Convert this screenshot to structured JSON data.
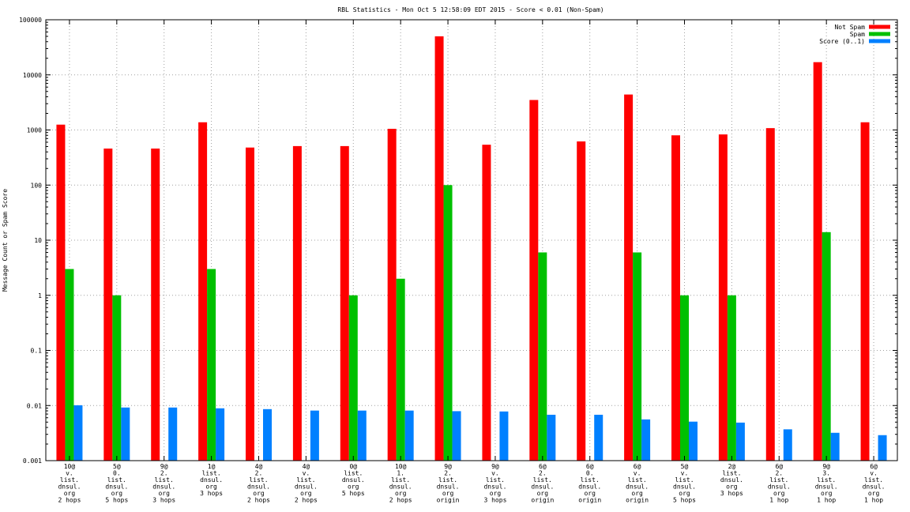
{
  "chart_data": {
    "type": "bar",
    "title": "RBL Statistics - Mon Oct  5 12:58:09 EDT 2015 - Score < 0.01 (Non-Spam)",
    "ylabel": "Message Count or Spam Score",
    "xlabel": "",
    "yscale": "log",
    "ylim": [
      0.001,
      100000
    ],
    "yticks": [
      "0.001",
      "0.01",
      "0.1",
      "1",
      "10",
      "100",
      "1000",
      "10000",
      "100000"
    ],
    "grid": true,
    "legend_position": "top-right",
    "categories": [
      [
        "10@",
        "v.",
        "list.",
        "dnsul.",
        "org",
        "2 hops"
      ],
      [
        "5@",
        "0.",
        "list.",
        "dnsul.",
        "org",
        "5 hops"
      ],
      [
        "9@",
        "2.",
        "list.",
        "dnsul.",
        "org",
        "3 hops"
      ],
      [
        "1@",
        "list.",
        "dnsul.",
        "org",
        "3 hops"
      ],
      [
        "4@",
        "2.",
        "list.",
        "dnsul.",
        "org",
        "2 hops"
      ],
      [
        "4@",
        "v.",
        "list.",
        "dnsul.",
        "org",
        "2 hops"
      ],
      [
        "0@",
        "list.",
        "dnsul.",
        "org",
        "5 hops"
      ],
      [
        "10@",
        "1.",
        "list.",
        "dnsul.",
        "org",
        "2 hops"
      ],
      [
        "9@",
        "2.",
        "list.",
        "dnsul.",
        "org",
        "origin"
      ],
      [
        "9@",
        "v.",
        "list.",
        "dnsul.",
        "org",
        "3 hops"
      ],
      [
        "6@",
        "2.",
        "list.",
        "dnsul.",
        "org",
        "origin"
      ],
      [
        "6@",
        "0.",
        "list.",
        "dnsul.",
        "org",
        "origin"
      ],
      [
        "6@",
        "v.",
        "list.",
        "dnsul.",
        "org",
        "origin"
      ],
      [
        "5@",
        "v.",
        "list.",
        "dnsul.",
        "org",
        "5 hops"
      ],
      [
        "2@",
        "list.",
        "dnsul.",
        "org",
        "3 hops"
      ],
      [
        "6@",
        "2.",
        "list.",
        "dnsul.",
        "org",
        "1 hop"
      ],
      [
        "9@",
        "3.",
        "list.",
        "dnsul.",
        "org",
        "1 hop"
      ],
      [
        "6@",
        "v.",
        "list.",
        "dnsul.",
        "org",
        "1 hop"
      ]
    ],
    "series": [
      {
        "name": "Not Spam",
        "color": "#ff0000",
        "values": [
          1250,
          460,
          460,
          1380,
          480,
          510,
          510,
          1050,
          50000,
          540,
          3500,
          620,
          4400,
          800,
          830,
          1080,
          17000,
          1380
        ]
      },
      {
        "name": "Spam",
        "color": "#00c000",
        "values": [
          3,
          1,
          null,
          3,
          null,
          null,
          1,
          2,
          100,
          null,
          6,
          null,
          6,
          1,
          1,
          null,
          14,
          null
        ]
      },
      {
        "name": "Score (0..1)",
        "color": "#0080ff",
        "values": [
          0.0101,
          0.0092,
          0.0092,
          0.0089,
          0.0086,
          0.0081,
          0.0081,
          0.0081,
          0.0079,
          0.0078,
          0.0068,
          0.0068,
          0.0056,
          0.0051,
          0.0049,
          0.0037,
          0.0032,
          0.0029
        ]
      }
    ]
  }
}
